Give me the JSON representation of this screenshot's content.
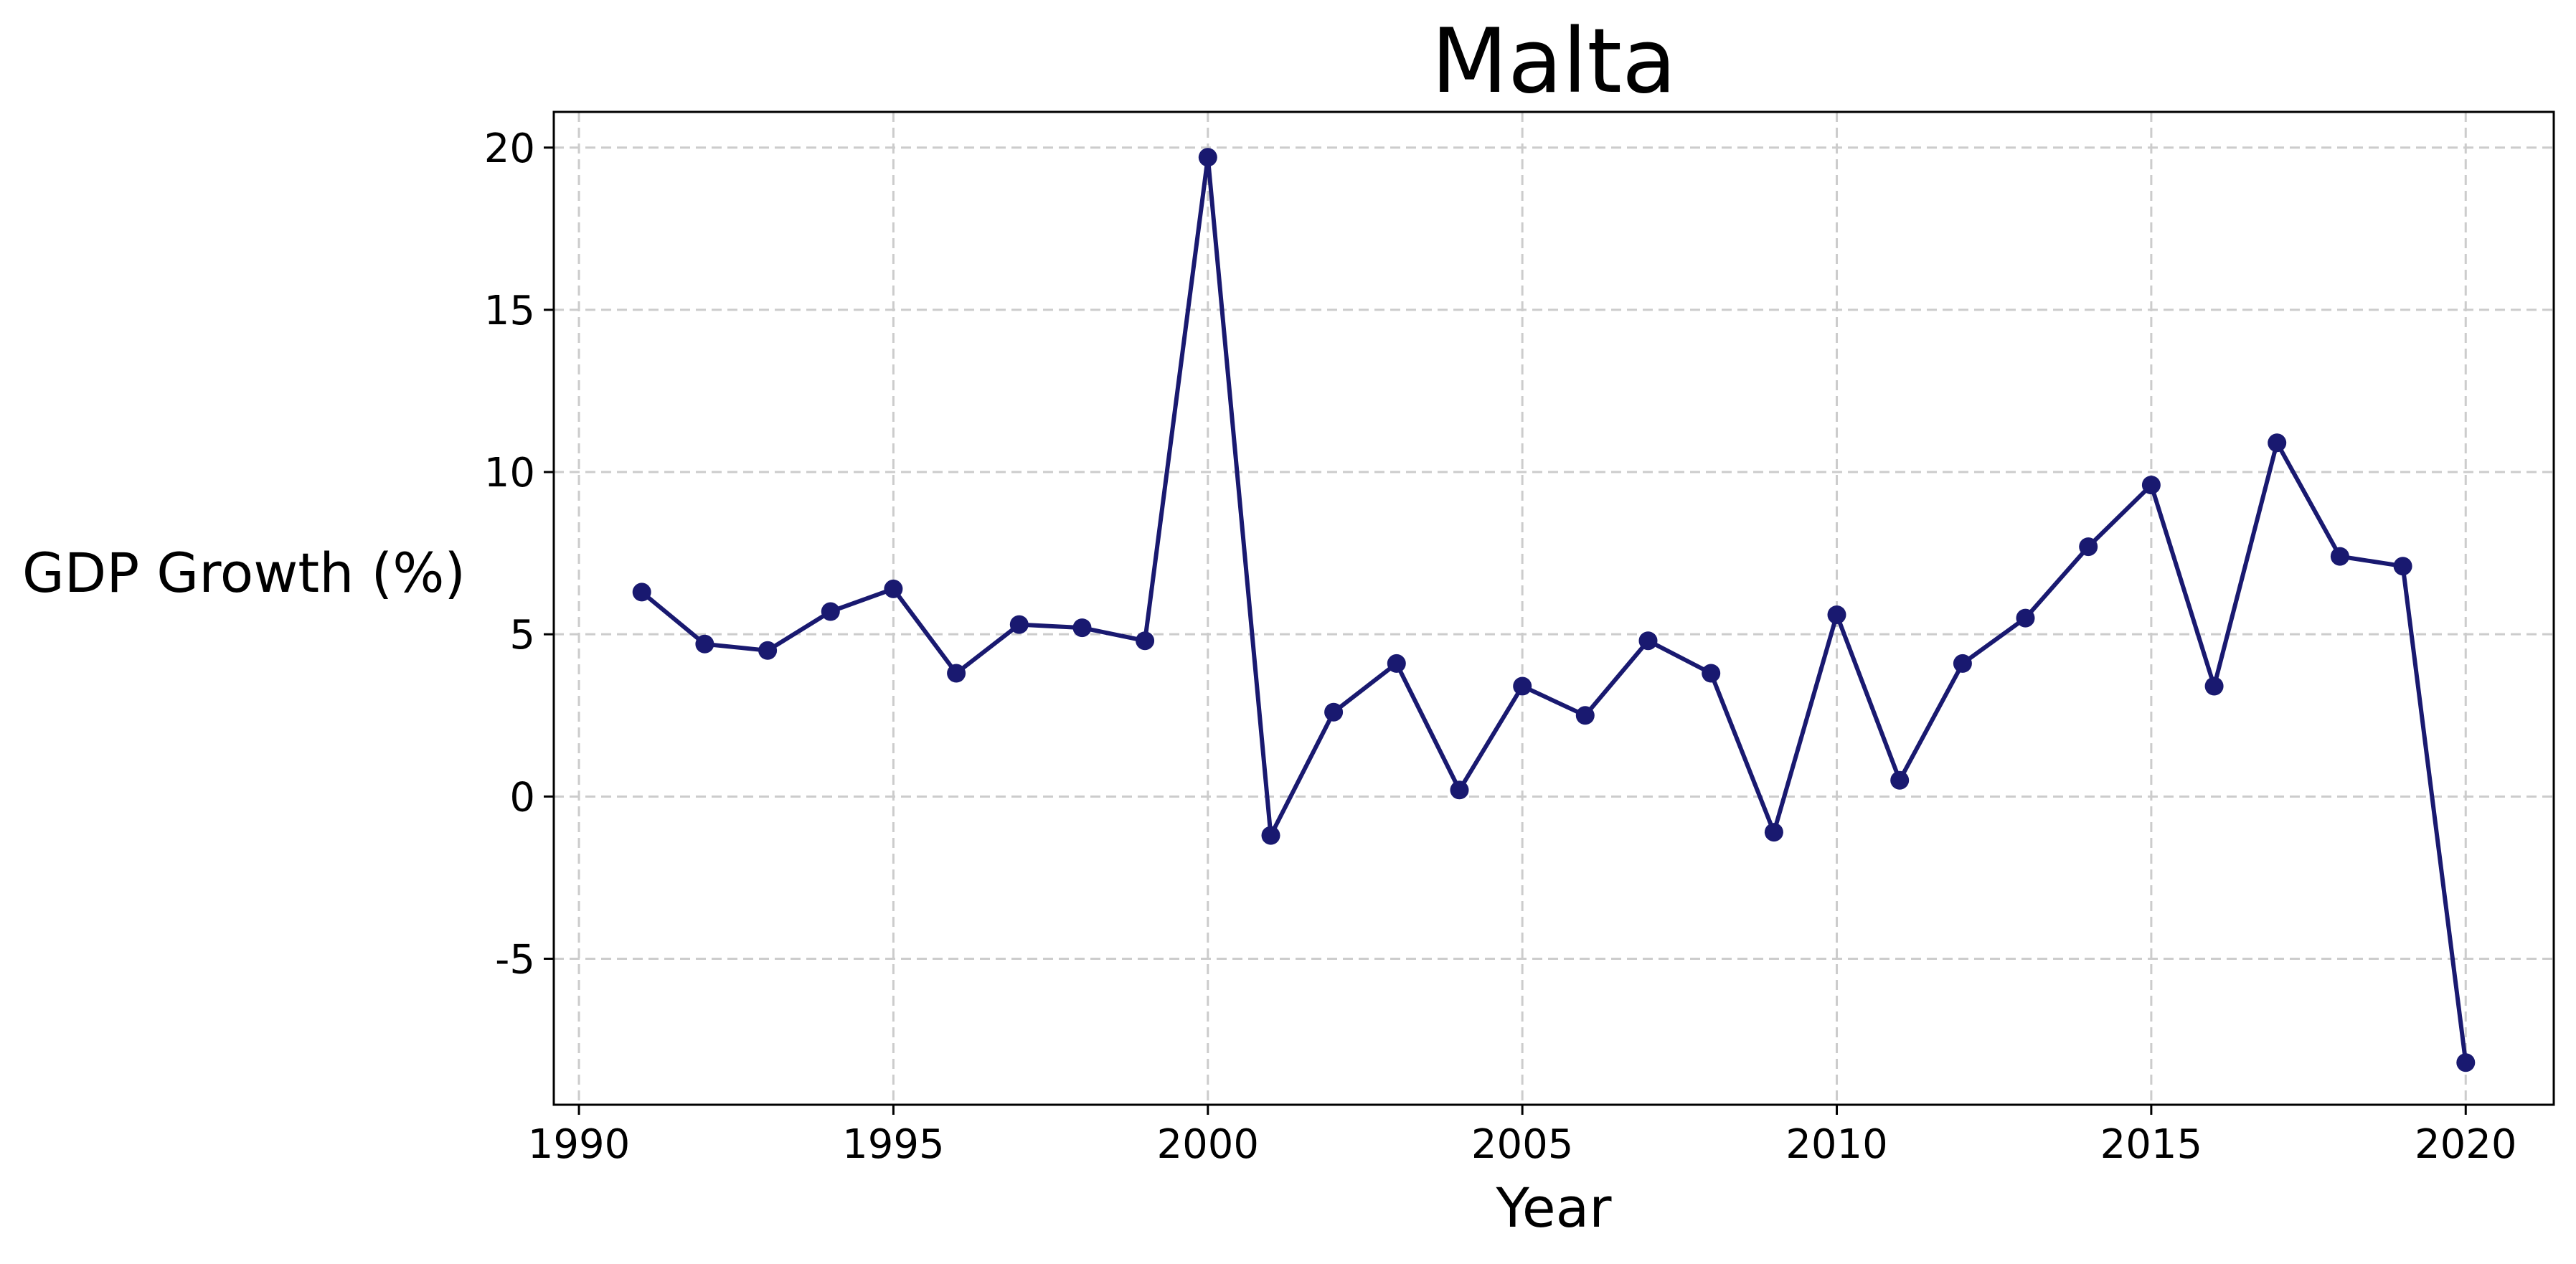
{
  "chart_data": {
    "type": "line",
    "title": "Malta",
    "xlabel": "Year",
    "ylabel": "GDP Growth (%)",
    "xlim": [
      1989.6,
      2021.4
    ],
    "ylim": [
      -9.5,
      21.1
    ],
    "xticks": [
      1990,
      1995,
      2000,
      2005,
      2010,
      2015,
      2020
    ],
    "yticks": [
      -5,
      0,
      5,
      10,
      15,
      20
    ],
    "grid": true,
    "line_color": "#191970",
    "series": [
      {
        "name": "",
        "x": [
          1991,
          1992,
          1993,
          1994,
          1995,
          1996,
          1997,
          1998,
          1999,
          2000,
          2001,
          2002,
          2003,
          2004,
          2005,
          2006,
          2007,
          2008,
          2009,
          2010,
          2011,
          2012,
          2013,
          2014,
          2015,
          2016,
          2017,
          2018,
          2019,
          2020
        ],
        "y": [
          6.3,
          4.7,
          4.5,
          5.7,
          6.4,
          3.8,
          5.3,
          5.2,
          4.8,
          19.7,
          -1.2,
          2.6,
          4.1,
          0.2,
          3.4,
          2.5,
          4.8,
          3.8,
          -1.1,
          5.6,
          0.5,
          4.1,
          5.5,
          7.7,
          9.6,
          3.4,
          10.9,
          7.4,
          7.1,
          -8.2
        ]
      }
    ]
  }
}
